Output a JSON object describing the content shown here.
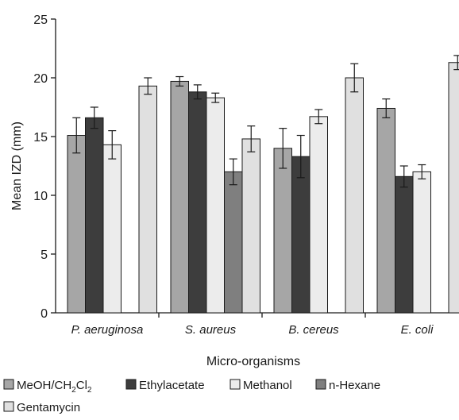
{
  "chart_data": {
    "type": "bar",
    "title": "",
    "xlabel": "Micro-organisms",
    "ylabel": "Mean IZD (mm)",
    "ylim": [
      0,
      25
    ],
    "yticks": [
      "0",
      "5",
      "10",
      "15",
      "20",
      "25"
    ],
    "grid": false,
    "legend_placement": "bottom",
    "categories": [
      "P. aeruginosa",
      "S. aureus",
      "B. cereus",
      "E. coli"
    ],
    "series": [
      {
        "name": "MeOH/CH2Cl2",
        "color": "#a6a6a6",
        "values": [
          15.1,
          19.7,
          14.0,
          17.4
        ],
        "errors": [
          1.5,
          0.4,
          1.7,
          0.8
        ]
      },
      {
        "name": "Ethylacetate",
        "color": "#3d3d3d",
        "values": [
          16.6,
          18.8,
          13.3,
          11.6
        ],
        "errors": [
          0.9,
          0.6,
          1.8,
          0.9
        ]
      },
      {
        "name": "Methanol",
        "color": "#ececec",
        "values": [
          14.3,
          18.3,
          16.7,
          12.0
        ],
        "errors": [
          1.2,
          0.4,
          0.6,
          0.6
        ]
      },
      {
        "name": "n-Hexane",
        "color": "#7f7f7f",
        "values": [
          null,
          12.0,
          null,
          null
        ],
        "errors": [
          0,
          1.1,
          0,
          0
        ]
      },
      {
        "name": "Gentamycin",
        "color": "#e0e0e0",
        "values": [
          19.3,
          14.8,
          20.0,
          21.3
        ],
        "errors": [
          0.7,
          1.1,
          1.2,
          0.6
        ]
      }
    ]
  }
}
